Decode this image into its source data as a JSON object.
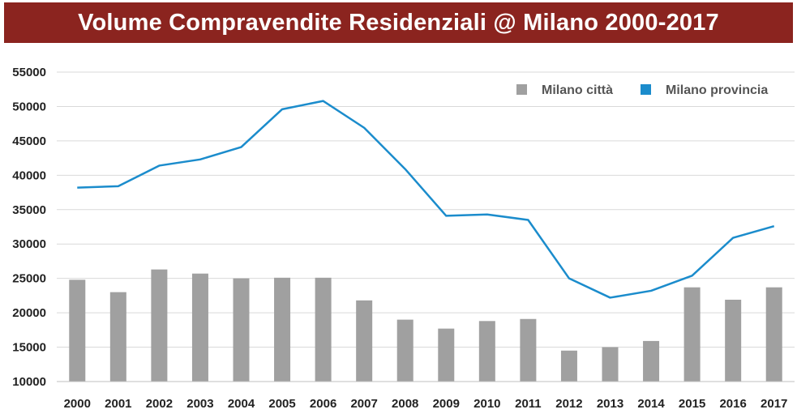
{
  "chart_data": {
    "type": "bar",
    "title": "Volume Compravendite Residenziali @ Milano 2000-2017",
    "xlabel": "",
    "ylabel": "",
    "ylim": [
      10000,
      55000
    ],
    "yticks": [
      10000,
      15000,
      20000,
      25000,
      30000,
      35000,
      40000,
      45000,
      50000,
      55000
    ],
    "grid": true,
    "legend": "top-right",
    "categories": [
      "2000",
      "2001",
      "2002",
      "2003",
      "2004",
      "2005",
      "2006",
      "2007",
      "2008",
      "2009",
      "2010",
      "2011",
      "2012",
      "2013",
      "2014",
      "2015",
      "2016",
      "2017"
    ],
    "series": [
      {
        "name": "Milano città",
        "type": "bar",
        "color": "#a0a0a0",
        "values": [
          24800,
          23000,
          26300,
          25700,
          25000,
          25100,
          25100,
          21800,
          19000,
          17700,
          18800,
          19100,
          14500,
          15000,
          15900,
          23700,
          21900,
          23700
        ]
      },
      {
        "name": "Milano provincia",
        "type": "line",
        "color": "#1b8ccc",
        "values": [
          38200,
          38400,
          41400,
          42300,
          44100,
          49600,
          50800,
          46900,
          40900,
          34100,
          34300,
          33500,
          25000,
          22200,
          23200,
          25400,
          30900,
          32600
        ]
      }
    ]
  }
}
